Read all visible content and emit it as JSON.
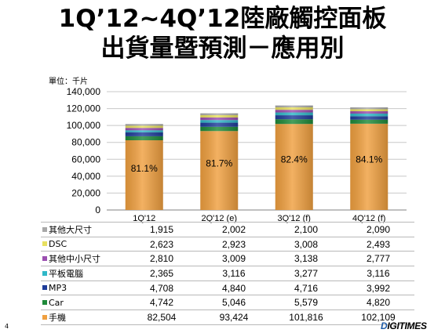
{
  "title_line1": "1Q’12~4Q’12陸廠觸控面板",
  "title_line2": "出貨量暨預測－應用別",
  "unit_label": "單位：千片",
  "page_number": "4",
  "logo": {
    "prefix": "D",
    "rest": "IGITIMES"
  },
  "chart_data": {
    "type": "bar",
    "stacked": true,
    "categories": [
      "1Q'12",
      "2Q'12 (e)",
      "3Q'12 (f)",
      "4Q'12 (f)"
    ],
    "ylim": [
      0,
      140000
    ],
    "yticks": [
      "0",
      "20,000",
      "40,000",
      "60,000",
      "80,000",
      "100,000",
      "120,000",
      "140,000"
    ],
    "grid": true,
    "bar_labels": [
      "81.1%",
      "81.7%",
      "82.4%",
      "84.1%"
    ],
    "series": [
      {
        "name": "手機",
        "color": "#f0a040",
        "values": [
          82504,
          93424,
          101816,
          102109
        ],
        "display": [
          "82,504",
          "93,424",
          "101,816",
          "102,109"
        ]
      },
      {
        "name": "Car",
        "color": "#1f8a3a",
        "values": [
          4742,
          5046,
          5579,
          4820
        ],
        "display": [
          "4,742",
          "5,046",
          "5,579",
          "4,820"
        ]
      },
      {
        "name": "MP3",
        "color": "#1f3d9a",
        "values": [
          4708,
          4840,
          4716,
          3992
        ],
        "display": [
          "4,708",
          "4,840",
          "4,716",
          "3,992"
        ]
      },
      {
        "name": "平板電腦",
        "color": "#30b8c8",
        "values": [
          2365,
          3116,
          3277,
          3116
        ],
        "display": [
          "2,365",
          "3,116",
          "3,277",
          "3,116"
        ]
      },
      {
        "name": "其他中小尺寸",
        "color": "#9b4fb0",
        "values": [
          2810,
          3009,
          3138,
          2777
        ],
        "display": [
          "2,810",
          "3,009",
          "3,138",
          "2,777"
        ]
      },
      {
        "name": "DSC",
        "color": "#e8e060",
        "values": [
          2623,
          2923,
          3008,
          2493
        ],
        "display": [
          "2,623",
          "2,923",
          "3,008",
          "2,493"
        ]
      },
      {
        "name": "其他大尺寸",
        "color": "#a8a8a8",
        "values": [
          1915,
          2002,
          2100,
          2090
        ],
        "display": [
          "1,915",
          "2,002",
          "2,100",
          "2,090"
        ]
      }
    ]
  }
}
